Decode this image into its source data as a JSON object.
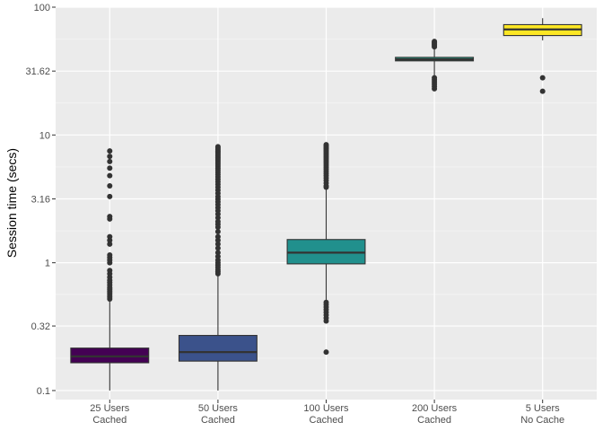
{
  "chart_data": {
    "type": "box",
    "ylabel": "Session time (secs)",
    "xlabel": "",
    "title": "",
    "y_scale": "log10",
    "ylim": [
      0.085,
      100
    ],
    "y_ticks": [
      0.1,
      0.32,
      1,
      3.16,
      10,
      31.62,
      100
    ],
    "y_tick_labels": [
      "0.1",
      "0.32",
      "1",
      "3.16",
      "10",
      "31.62",
      "100"
    ],
    "grid": true,
    "legend": "none",
    "categories": [
      {
        "line1": "25 Users",
        "line2": "Cached"
      },
      {
        "line1": "50 Users",
        "line2": "Cached"
      },
      {
        "line1": "100 Users",
        "line2": "Cached"
      },
      {
        "line1": "200 Users",
        "line2": "Cached"
      },
      {
        "line1": "5 Users",
        "line2": "No Cache"
      }
    ],
    "series": [
      {
        "fill": "#440154",
        "whisker_low": 0.1,
        "q1": 0.165,
        "median": 0.185,
        "q3": 0.215,
        "whisker_high": 0.52,
        "outliers": [
          0.52,
          0.54,
          0.56,
          0.58,
          0.6,
          0.62,
          0.64,
          0.67,
          0.7,
          0.73,
          0.77,
          0.82,
          0.87,
          1.0,
          1.05,
          1.1,
          1.15,
          1.4,
          1.5,
          1.6,
          2.2,
          2.3,
          3.3,
          4.0,
          4.8,
          5.5,
          6.2,
          6.8,
          7.5
        ]
      },
      {
        "fill": "#3b528b",
        "whisker_low": 0.1,
        "q1": 0.17,
        "median": 0.2,
        "q3": 0.27,
        "whisker_high": 0.8,
        "outliers": [
          0.82,
          0.85,
          0.88,
          0.92,
          0.96,
          1.0,
          1.05,
          1.12,
          1.2,
          1.3,
          1.4,
          1.5,
          1.6,
          1.75,
          1.9,
          2.0,
          2.1,
          2.25,
          2.4,
          2.55,
          2.7,
          2.85,
          3.0,
          3.15,
          3.3,
          3.5,
          3.7,
          3.9,
          4.1,
          4.3,
          4.5,
          4.7,
          4.9,
          5.1,
          5.3,
          5.5,
          5.7,
          5.9,
          6.1,
          6.3,
          6.5,
          6.7,
          6.9,
          7.1,
          7.3,
          7.5,
          7.7,
          7.9,
          8.1
        ]
      },
      {
        "fill": "#21908d",
        "whisker_low": 0.5,
        "q1": 0.98,
        "median": 1.2,
        "q3": 1.52,
        "whisker_high": 3.8,
        "outliers": [
          0.2,
          0.35,
          0.37,
          0.39,
          0.41,
          0.43,
          0.45,
          0.47,
          0.49,
          3.9,
          4.0,
          4.2,
          4.4,
          4.6,
          4.8,
          5.0,
          5.2,
          5.4,
          5.6,
          5.8,
          6.0,
          6.2,
          6.4,
          6.6,
          6.8,
          7.0,
          7.2,
          7.4,
          7.6,
          7.8,
          8.0,
          8.2,
          8.4
        ]
      },
      {
        "fill": "#1fa187",
        "whisker_low": 28.5,
        "q1": 38.0,
        "median": 39.0,
        "q3": 40.5,
        "whisker_high": 48.0,
        "outliers": [
          23.0,
          24.0,
          25.0,
          26.0,
          27.0,
          28.0,
          49.0,
          50.0,
          51.0,
          52.0,
          53.0,
          54.0
        ]
      },
      {
        "fill": "#fde725",
        "whisker_low": 55.0,
        "q1": 60.0,
        "median": 67.0,
        "q3": 73.0,
        "whisker_high": 82.0,
        "outliers": [
          22.0,
          28.0
        ]
      }
    ]
  }
}
